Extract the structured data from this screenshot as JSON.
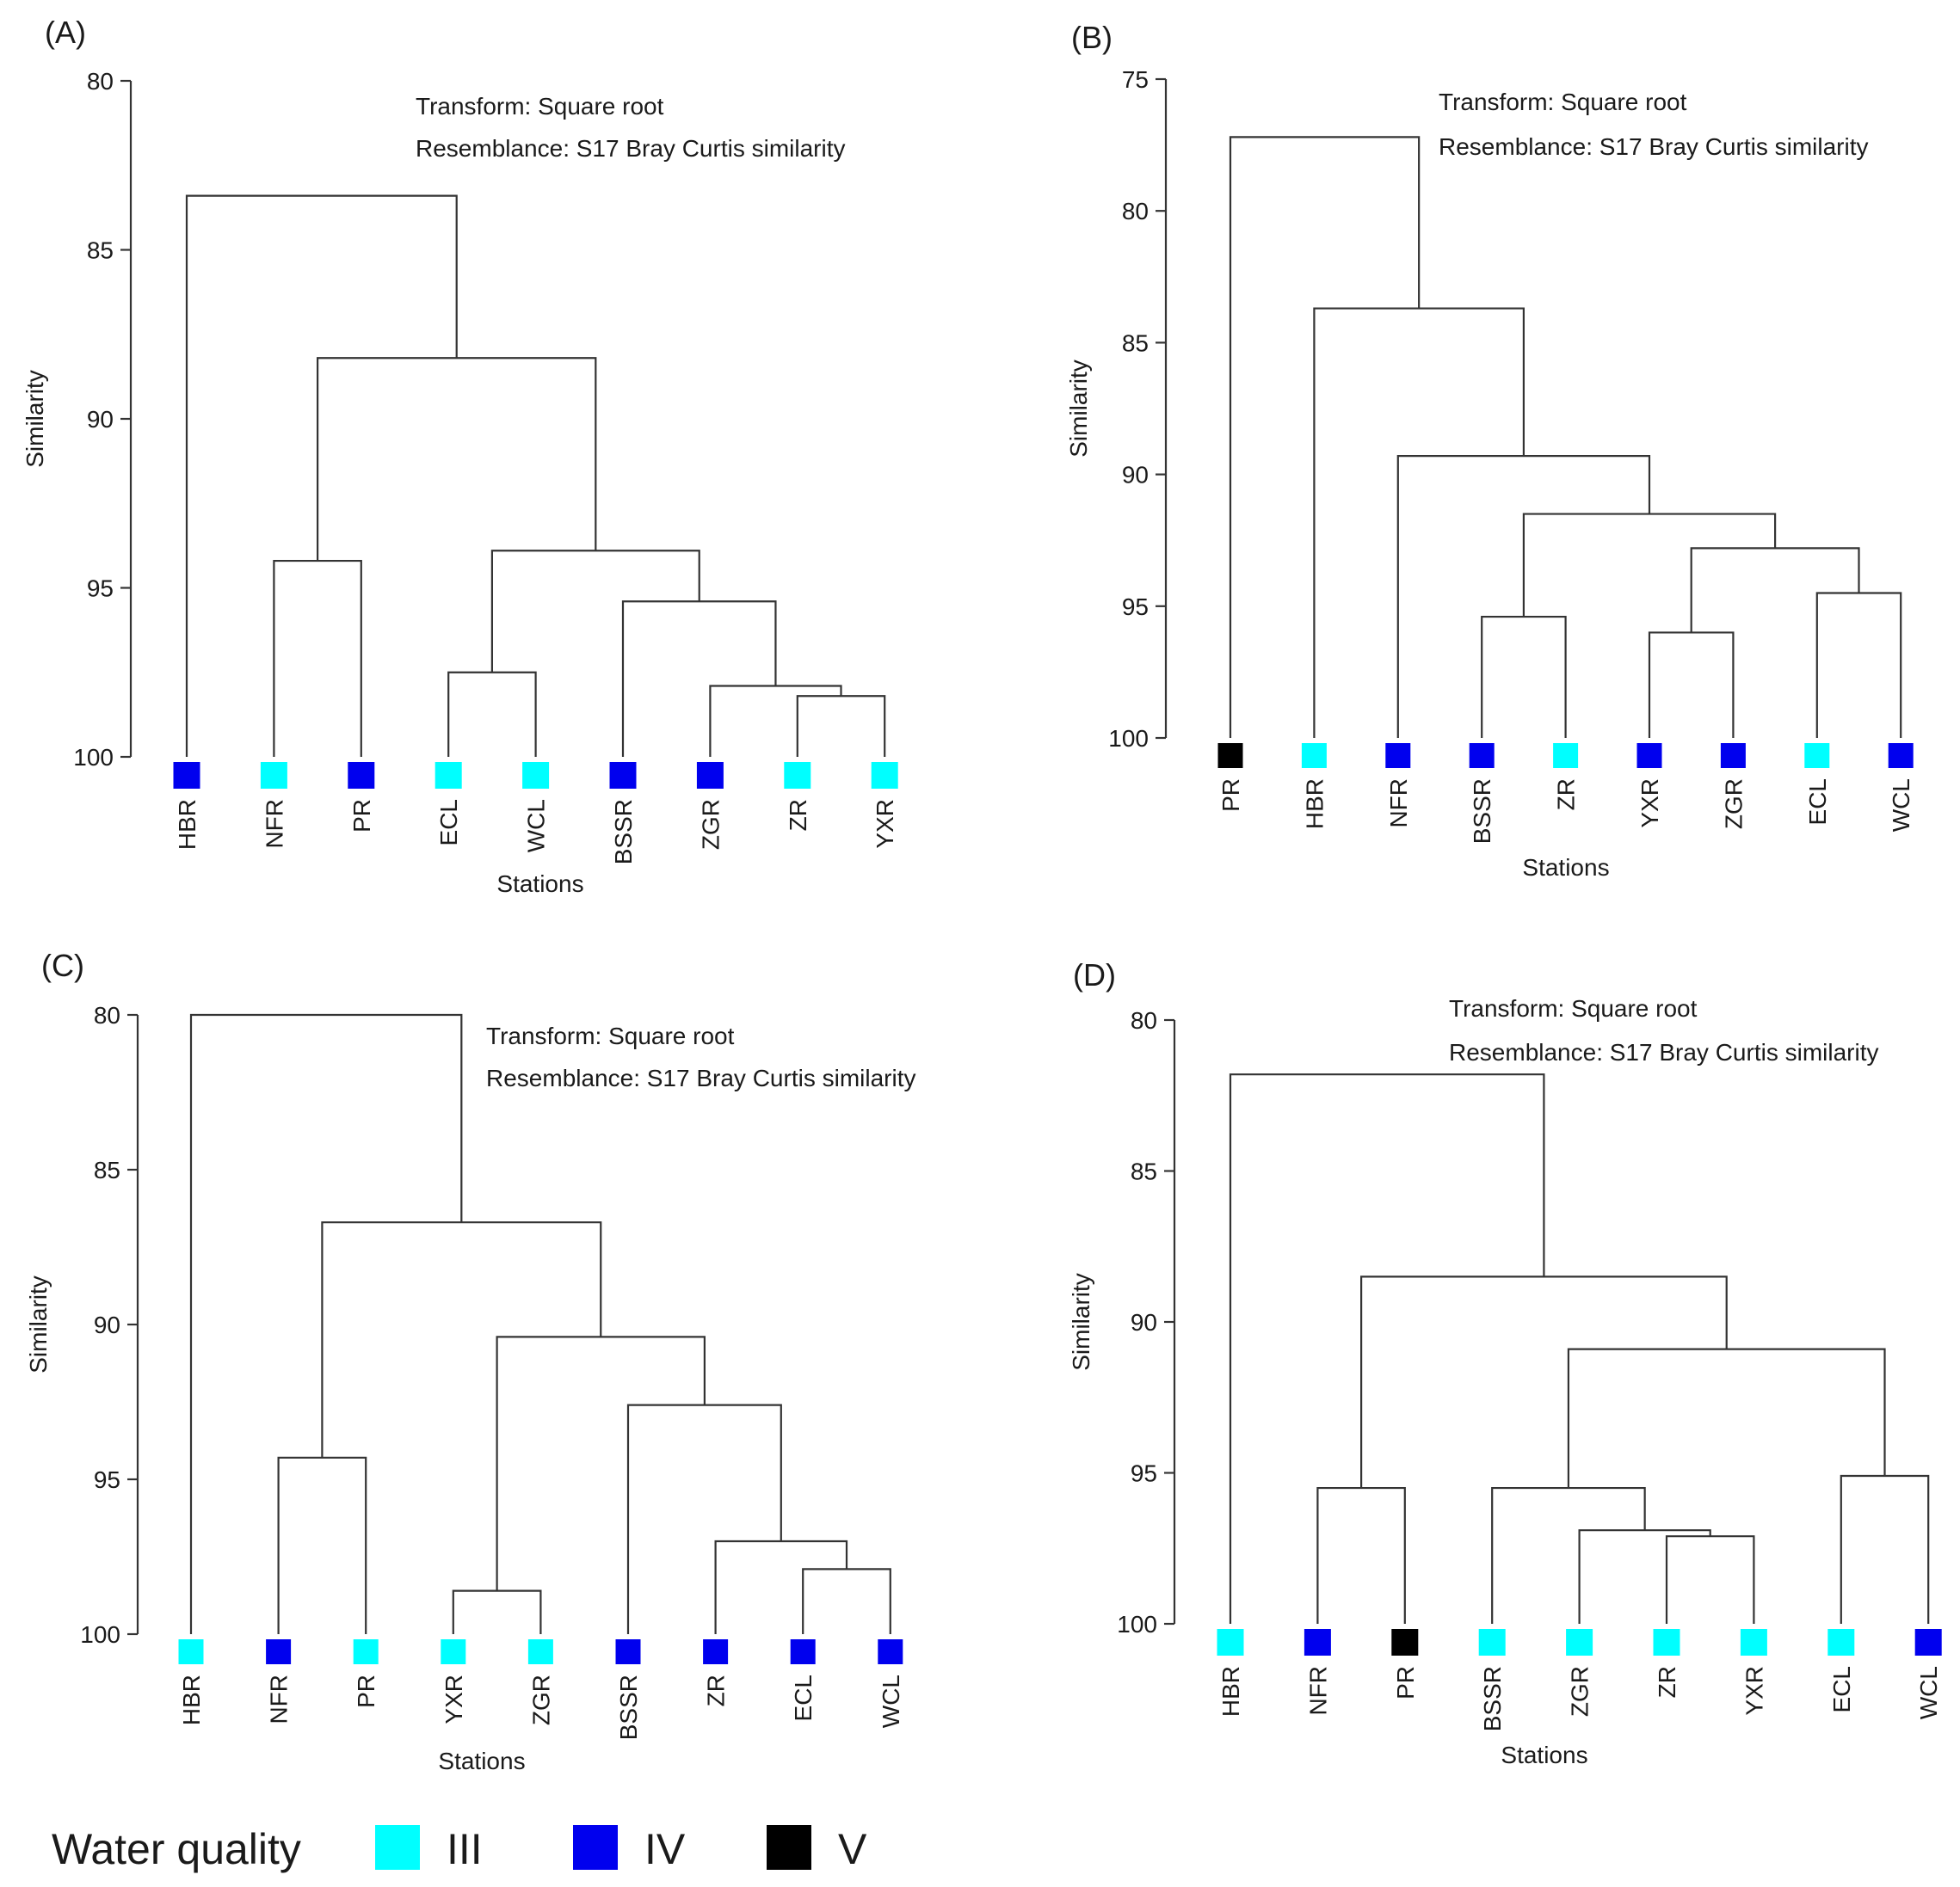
{
  "figure": {
    "legend": {
      "title": "Water quality",
      "items": [
        {
          "label": "III",
          "class": "III",
          "color": "#00ffff"
        },
        {
          "label": "IV",
          "class": "IV",
          "color": "#0000ee"
        },
        {
          "label": "V",
          "class": "V",
          "color": "#000000"
        }
      ]
    }
  },
  "chart_data": [
    {
      "type": "dendrogram",
      "panel": "(A)",
      "transform_note": "Transform: Square root",
      "resemblance_note": "Resemblance: S17 Bray Curtis similarity",
      "ylabel": "Similarity",
      "xlabel": "Stations",
      "ylim": [
        80,
        100
      ],
      "yticks": [
        80,
        85,
        90,
        95,
        100
      ],
      "leaves": [
        {
          "label": "HBR",
          "class": "IV"
        },
        {
          "label": "NFR",
          "class": "III"
        },
        {
          "label": "PR",
          "class": "IV"
        },
        {
          "label": "ECL",
          "class": "III"
        },
        {
          "label": "WCL",
          "class": "III"
        },
        {
          "label": "BSSR",
          "class": "IV"
        },
        {
          "label": "ZGR",
          "class": "IV"
        },
        {
          "label": "ZR",
          "class": "III"
        },
        {
          "label": "YXR",
          "class": "III"
        }
      ],
      "merges": [
        {
          "a": 7,
          "b": 8,
          "sim": 98.2
        },
        {
          "a": 6,
          "b": 9,
          "sim": 97.9
        },
        {
          "a": 3,
          "b": 4,
          "sim": 97.5
        },
        {
          "a": 5,
          "b": 10,
          "sim": 95.4
        },
        {
          "a": 1,
          "b": 2,
          "sim": 94.2
        },
        {
          "a": 11,
          "b": 12,
          "sim": 93.9
        },
        {
          "a": 13,
          "b": 14,
          "sim": 88.2
        },
        {
          "a": 0,
          "b": 15,
          "sim": 83.4
        }
      ]
    },
    {
      "type": "dendrogram",
      "panel": "(B)",
      "transform_note": "Transform: Square root",
      "resemblance_note": "Resemblance: S17 Bray Curtis similarity",
      "ylabel": "Similarity",
      "xlabel": "Stations",
      "ylim": [
        75,
        100
      ],
      "yticks": [
        75,
        80,
        85,
        90,
        95,
        100
      ],
      "leaves": [
        {
          "label": "PR",
          "class": "V"
        },
        {
          "label": "HBR",
          "class": "III"
        },
        {
          "label": "NFR",
          "class": "IV"
        },
        {
          "label": "BSSR",
          "class": "IV"
        },
        {
          "label": "ZR",
          "class": "III"
        },
        {
          "label": "YXR",
          "class": "IV"
        },
        {
          "label": "ZGR",
          "class": "IV"
        },
        {
          "label": "ECL",
          "class": "III"
        },
        {
          "label": "WCL",
          "class": "IV"
        }
      ],
      "merges": [
        {
          "a": 7,
          "b": 8,
          "sim": 94.5
        },
        {
          "a": 5,
          "b": 6,
          "sim": 96.0
        },
        {
          "a": 3,
          "b": 4,
          "sim": 95.4
        },
        {
          "a": 10,
          "b": 9,
          "sim": 92.8
        },
        {
          "a": 11,
          "b": 12,
          "sim": 91.5
        },
        {
          "a": 2,
          "b": 13,
          "sim": 89.3
        },
        {
          "a": 1,
          "b": 14,
          "sim": 83.7
        },
        {
          "a": 0,
          "b": 15,
          "sim": 77.2
        }
      ]
    },
    {
      "type": "dendrogram",
      "panel": "(C)",
      "transform_note": "Transform: Square root",
      "resemblance_note": "Resemblance: S17 Bray Curtis similarity",
      "ylabel": "Similarity",
      "xlabel": "Stations",
      "ylim": [
        80,
        100
      ],
      "yticks": [
        80,
        85,
        90,
        95,
        100
      ],
      "leaves": [
        {
          "label": "HBR",
          "class": "III"
        },
        {
          "label": "NFR",
          "class": "IV"
        },
        {
          "label": "PR",
          "class": "III"
        },
        {
          "label": "YXR",
          "class": "III"
        },
        {
          "label": "ZGR",
          "class": "III"
        },
        {
          "label": "BSSR",
          "class": "IV"
        },
        {
          "label": "ZR",
          "class": "IV"
        },
        {
          "label": "ECL",
          "class": "IV"
        },
        {
          "label": "WCL",
          "class": "IV"
        }
      ],
      "merges": [
        {
          "a": 3,
          "b": 4,
          "sim": 98.6
        },
        {
          "a": 7,
          "b": 8,
          "sim": 97.9
        },
        {
          "a": 6,
          "b": 10,
          "sim": 97.0
        },
        {
          "a": 5,
          "b": 11,
          "sim": 92.6
        },
        {
          "a": 9,
          "b": 12,
          "sim": 90.4
        },
        {
          "a": 1,
          "b": 2,
          "sim": 94.3
        },
        {
          "a": 14,
          "b": 13,
          "sim": 86.7
        },
        {
          "a": 0,
          "b": 15,
          "sim": 80.0
        }
      ]
    },
    {
      "type": "dendrogram",
      "panel": "(D)",
      "transform_note": "Transform: Square root",
      "resemblance_note": "Resemblance: S17 Bray Curtis similarity",
      "ylabel": "Similarity",
      "xlabel": "Stations",
      "ylim": [
        80,
        100
      ],
      "yticks": [
        80,
        85,
        90,
        95,
        100
      ],
      "leaves": [
        {
          "label": "HBR",
          "class": "III"
        },
        {
          "label": "NFR",
          "class": "IV"
        },
        {
          "label": "PR",
          "class": "V"
        },
        {
          "label": "BSSR",
          "class": "III"
        },
        {
          "label": "ZGR",
          "class": "III"
        },
        {
          "label": "ZR",
          "class": "III"
        },
        {
          "label": "YXR",
          "class": "III"
        },
        {
          "label": "ECL",
          "class": "III"
        },
        {
          "label": "WCL",
          "class": "IV"
        }
      ],
      "merges": [
        {
          "a": 5,
          "b": 6,
          "sim": 97.1
        },
        {
          "a": 4,
          "b": 9,
          "sim": 96.9
        },
        {
          "a": 3,
          "b": 10,
          "sim": 95.5
        },
        {
          "a": 7,
          "b": 8,
          "sim": 95.1
        },
        {
          "a": 11,
          "b": 12,
          "sim": 90.9
        },
        {
          "a": 1,
          "b": 2,
          "sim": 95.5
        },
        {
          "a": 14,
          "b": 13,
          "sim": 88.5
        },
        {
          "a": 0,
          "b": 15,
          "sim": 81.8
        }
      ]
    }
  ]
}
